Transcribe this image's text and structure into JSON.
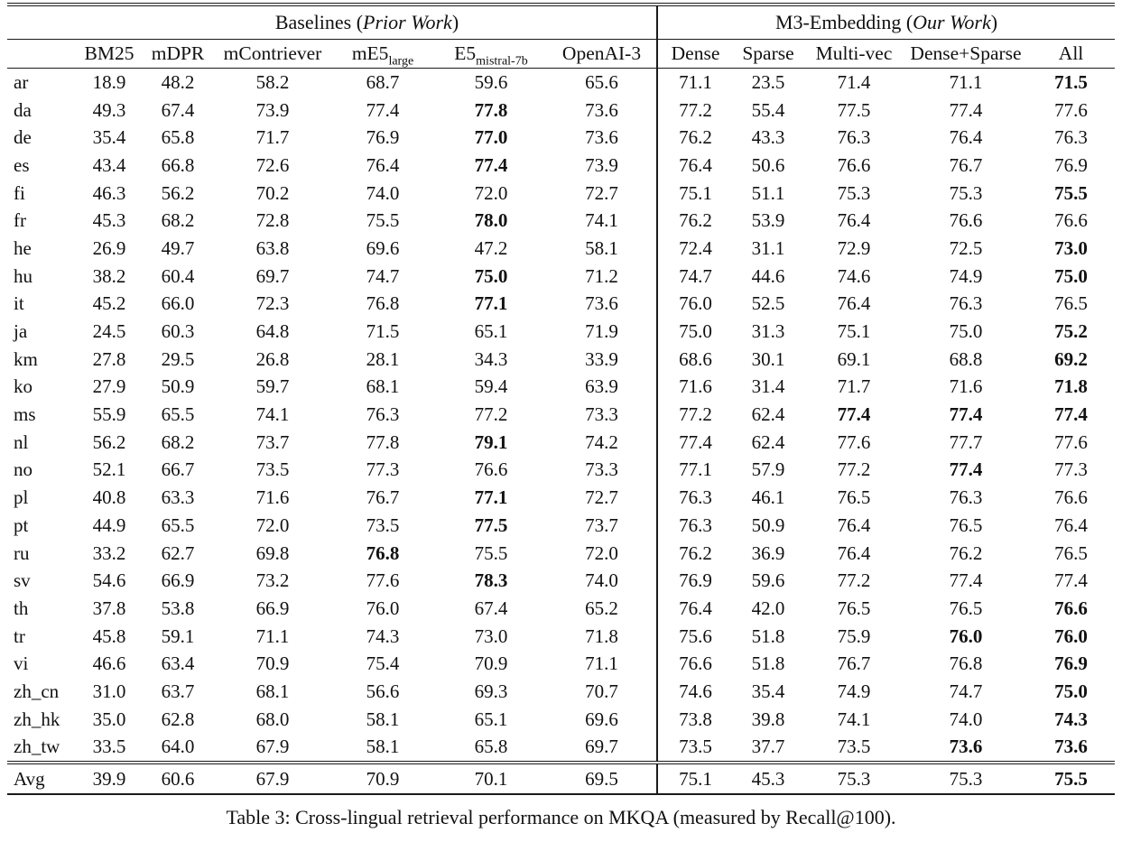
{
  "caption": "Table 3: Cross-lingual retrieval performance on MKQA (measured by Recall@100).",
  "table": {
    "groups": [
      {
        "name": "Baselines",
        "qualifier": "Prior Work"
      },
      {
        "name": "M3-Embedding",
        "qualifier": "Our Work"
      }
    ],
    "columns": [
      {
        "label": "BM25",
        "sub": ""
      },
      {
        "label": "mDPR",
        "sub": ""
      },
      {
        "label": "mContriever",
        "sub": ""
      },
      {
        "label": "mE5",
        "sub": "large"
      },
      {
        "label": "E5",
        "sub": "mistral-7b"
      },
      {
        "label": "OpenAI-3",
        "sub": ""
      },
      {
        "label": "Dense",
        "sub": ""
      },
      {
        "label": "Sparse",
        "sub": ""
      },
      {
        "label": "Multi-vec",
        "sub": ""
      },
      {
        "label": "Dense+Sparse",
        "sub": ""
      },
      {
        "label": "All",
        "sub": ""
      }
    ],
    "rows": [
      {
        "lang": "ar",
        "values": [
          "18.9",
          "48.2",
          "58.2",
          "68.7",
          "59.6",
          "65.6",
          "71.1",
          "23.5",
          "71.4",
          "71.1",
          "71.5"
        ],
        "bold": [
          10
        ]
      },
      {
        "lang": "da",
        "values": [
          "49.3",
          "67.4",
          "73.9",
          "77.4",
          "77.8",
          "73.6",
          "77.2",
          "55.4",
          "77.5",
          "77.4",
          "77.6"
        ],
        "bold": [
          4
        ]
      },
      {
        "lang": "de",
        "values": [
          "35.4",
          "65.8",
          "71.7",
          "76.9",
          "77.0",
          "73.6",
          "76.2",
          "43.3",
          "76.3",
          "76.4",
          "76.3"
        ],
        "bold": [
          4
        ]
      },
      {
        "lang": "es",
        "values": [
          "43.4",
          "66.8",
          "72.6",
          "76.4",
          "77.4",
          "73.9",
          "76.4",
          "50.6",
          "76.6",
          "76.7",
          "76.9"
        ],
        "bold": [
          4
        ]
      },
      {
        "lang": "fi",
        "values": [
          "46.3",
          "56.2",
          "70.2",
          "74.0",
          "72.0",
          "72.7",
          "75.1",
          "51.1",
          "75.3",
          "75.3",
          "75.5"
        ],
        "bold": [
          10
        ]
      },
      {
        "lang": "fr",
        "values": [
          "45.3",
          "68.2",
          "72.8",
          "75.5",
          "78.0",
          "74.1",
          "76.2",
          "53.9",
          "76.4",
          "76.6",
          "76.6"
        ],
        "bold": [
          4
        ]
      },
      {
        "lang": "he",
        "values": [
          "26.9",
          "49.7",
          "63.8",
          "69.6",
          "47.2",
          "58.1",
          "72.4",
          "31.1",
          "72.9",
          "72.5",
          "73.0"
        ],
        "bold": [
          10
        ]
      },
      {
        "lang": "hu",
        "values": [
          "38.2",
          "60.4",
          "69.7",
          "74.7",
          "75.0",
          "71.2",
          "74.7",
          "44.6",
          "74.6",
          "74.9",
          "75.0"
        ],
        "bold": [
          4,
          10
        ]
      },
      {
        "lang": "it",
        "values": [
          "45.2",
          "66.0",
          "72.3",
          "76.8",
          "77.1",
          "73.6",
          "76.0",
          "52.5",
          "76.4",
          "76.3",
          "76.5"
        ],
        "bold": [
          4
        ]
      },
      {
        "lang": "ja",
        "values": [
          "24.5",
          "60.3",
          "64.8",
          "71.5",
          "65.1",
          "71.9",
          "75.0",
          "31.3",
          "75.1",
          "75.0",
          "75.2"
        ],
        "bold": [
          10
        ]
      },
      {
        "lang": "km",
        "values": [
          "27.8",
          "29.5",
          "26.8",
          "28.1",
          "34.3",
          "33.9",
          "68.6",
          "30.1",
          "69.1",
          "68.8",
          "69.2"
        ],
        "bold": [
          10
        ]
      },
      {
        "lang": "ko",
        "values": [
          "27.9",
          "50.9",
          "59.7",
          "68.1",
          "59.4",
          "63.9",
          "71.6",
          "31.4",
          "71.7",
          "71.6",
          "71.8"
        ],
        "bold": [
          10
        ]
      },
      {
        "lang": "ms",
        "values": [
          "55.9",
          "65.5",
          "74.1",
          "76.3",
          "77.2",
          "73.3",
          "77.2",
          "62.4",
          "77.4",
          "77.4",
          "77.4"
        ],
        "bold": [
          8,
          9,
          10
        ]
      },
      {
        "lang": "nl",
        "values": [
          "56.2",
          "68.2",
          "73.7",
          "77.8",
          "79.1",
          "74.2",
          "77.4",
          "62.4",
          "77.6",
          "77.7",
          "77.6"
        ],
        "bold": [
          4
        ]
      },
      {
        "lang": "no",
        "values": [
          "52.1",
          "66.7",
          "73.5",
          "77.3",
          "76.6",
          "73.3",
          "77.1",
          "57.9",
          "77.2",
          "77.4",
          "77.3"
        ],
        "bold": [
          9
        ]
      },
      {
        "lang": "pl",
        "values": [
          "40.8",
          "63.3",
          "71.6",
          "76.7",
          "77.1",
          "72.7",
          "76.3",
          "46.1",
          "76.5",
          "76.3",
          "76.6"
        ],
        "bold": [
          4
        ]
      },
      {
        "lang": "pt",
        "values": [
          "44.9",
          "65.5",
          "72.0",
          "73.5",
          "77.5",
          "73.7",
          "76.3",
          "50.9",
          "76.4",
          "76.5",
          "76.4"
        ],
        "bold": [
          4
        ]
      },
      {
        "lang": "ru",
        "values": [
          "33.2",
          "62.7",
          "69.8",
          "76.8",
          "75.5",
          "72.0",
          "76.2",
          "36.9",
          "76.4",
          "76.2",
          "76.5"
        ],
        "bold": [
          3
        ]
      },
      {
        "lang": "sv",
        "values": [
          "54.6",
          "66.9",
          "73.2",
          "77.6",
          "78.3",
          "74.0",
          "76.9",
          "59.6",
          "77.2",
          "77.4",
          "77.4"
        ],
        "bold": [
          4
        ]
      },
      {
        "lang": "th",
        "values": [
          "37.8",
          "53.8",
          "66.9",
          "76.0",
          "67.4",
          "65.2",
          "76.4",
          "42.0",
          "76.5",
          "76.5",
          "76.6"
        ],
        "bold": [
          10
        ]
      },
      {
        "lang": "tr",
        "values": [
          "45.8",
          "59.1",
          "71.1",
          "74.3",
          "73.0",
          "71.8",
          "75.6",
          "51.8",
          "75.9",
          "76.0",
          "76.0"
        ],
        "bold": [
          9,
          10
        ]
      },
      {
        "lang": "vi",
        "values": [
          "46.6",
          "63.4",
          "70.9",
          "75.4",
          "70.9",
          "71.1",
          "76.6",
          "51.8",
          "76.7",
          "76.8",
          "76.9"
        ],
        "bold": [
          10
        ]
      },
      {
        "lang": "zh_cn",
        "values": [
          "31.0",
          "63.7",
          "68.1",
          "56.6",
          "69.3",
          "70.7",
          "74.6",
          "35.4",
          "74.9",
          "74.7",
          "75.0"
        ],
        "bold": [
          10
        ]
      },
      {
        "lang": "zh_hk",
        "values": [
          "35.0",
          "62.8",
          "68.0",
          "58.1",
          "65.1",
          "69.6",
          "73.8",
          "39.8",
          "74.1",
          "74.0",
          "74.3"
        ],
        "bold": [
          10
        ]
      },
      {
        "lang": "zh_tw",
        "values": [
          "33.5",
          "64.0",
          "67.9",
          "58.1",
          "65.8",
          "69.7",
          "73.5",
          "37.7",
          "73.5",
          "73.6",
          "73.6"
        ],
        "bold": [
          9,
          10
        ]
      }
    ],
    "avg_row": {
      "lang": "Avg",
      "values": [
        "39.9",
        "60.6",
        "67.9",
        "70.9",
        "70.1",
        "69.5",
        "75.1",
        "45.3",
        "75.3",
        "75.3",
        "75.5"
      ],
      "bold": [
        10
      ]
    }
  }
}
